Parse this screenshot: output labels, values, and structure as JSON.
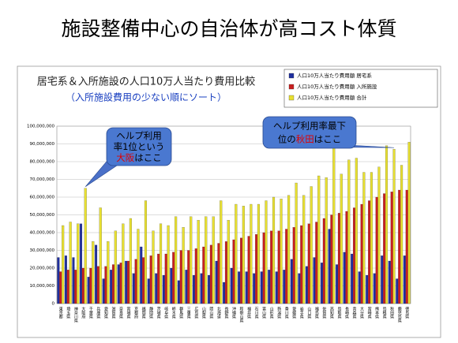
{
  "title": "施設整備中心の自治体が高コスト体質",
  "chart_data": {
    "type": "bar",
    "title": "居宅系＆入所施設の人口10万人当たり費用比較",
    "subtitle": "（入所施設費用の少ない順にソート）",
    "categories": [
      "東京都",
      "埼玉県",
      "神奈川県",
      "大阪府",
      "千葉県",
      "兵庫県",
      "愛知県",
      "滋賀県",
      "奈良県",
      "宮城県",
      "京都府",
      "福岡県",
      "静岡県",
      "茨城県",
      "岐阜県",
      "栃木県",
      "群馬県",
      "三重県",
      "広島県",
      "山梨県",
      "岡山県",
      "北海道",
      "長野県",
      "沖縄県",
      "和歌山県",
      "福井県",
      "石川県",
      "富山県",
      "山形県",
      "新潟県",
      "香川県",
      "愛媛県",
      "岩手県",
      "山口県",
      "福島県",
      "佐賀県",
      "高知県",
      "鳥取県",
      "長崎県",
      "青森県",
      "大分県",
      "宮崎県",
      "熊本県",
      "島根県",
      "秋田県",
      "鹿児島県",
      "徳島県"
    ],
    "series": [
      {
        "name": "人口10万人当たり費用額 居宅系",
        "color": "#1f2f9f",
        "values": [
          26000000,
          27000000,
          26000000,
          45000000,
          15000000,
          33000000,
          14000000,
          19000000,
          22000000,
          24000000,
          17000000,
          32000000,
          14000000,
          17000000,
          16000000,
          20000000,
          13000000,
          19000000,
          16000000,
          17000000,
          16000000,
          24000000,
          12000000,
          20000000,
          18000000,
          18000000,
          17000000,
          18000000,
          19000000,
          18000000,
          19000000,
          25000000,
          17000000,
          21000000,
          26000000,
          23000000,
          42000000,
          22000000,
          29000000,
          28000000,
          18000000,
          16000000,
          17000000,
          27000000,
          24000000,
          14000000,
          27000000
        ]
      },
      {
        "name": "人口10万人当たり費用額 入所施設",
        "color": "#c82020",
        "values": [
          18000000,
          19000000,
          19000000,
          20000000,
          20000000,
          21000000,
          21000000,
          22000000,
          23000000,
          24000000,
          25000000,
          26000000,
          27000000,
          28000000,
          28000000,
          29000000,
          30000000,
          30000000,
          31000000,
          32000000,
          33000000,
          34000000,
          35000000,
          36000000,
          37000000,
          38000000,
          39000000,
          40000000,
          41000000,
          41000000,
          42000000,
          43000000,
          44000000,
          45000000,
          46000000,
          48000000,
          50000000,
          51000000,
          52000000,
          54000000,
          56000000,
          58000000,
          60000000,
          62000000,
          63000000,
          64000000,
          64000000
        ]
      },
      {
        "name": "人口10万人当たり費用額 合計",
        "color": "#e8e030",
        "values": [
          44000000,
          46000000,
          45000000,
          65000000,
          35000000,
          54000000,
          35000000,
          41000000,
          45000000,
          48000000,
          42000000,
          58000000,
          41000000,
          45000000,
          44000000,
          49000000,
          43000000,
          49000000,
          47000000,
          49000000,
          49000000,
          58000000,
          47000000,
          56000000,
          55000000,
          56000000,
          56000000,
          58000000,
          60000000,
          59000000,
          61000000,
          68000000,
          61000000,
          66000000,
          72000000,
          71000000,
          92000000,
          73000000,
          81000000,
          82000000,
          74000000,
          74000000,
          77000000,
          89000000,
          87000000,
          78000000,
          91000000
        ]
      }
    ],
    "ylim": [
      0,
      100000000
    ],
    "yticks": [
      0,
      {
        "value": 10000000,
        "label": "10,000,000"
      },
      {
        "value": 20000000,
        "label": "20,000,000"
      },
      {
        "value": 30000000,
        "label": "30,000,000"
      },
      {
        "value": 40000000,
        "label": "40,000,000"
      },
      {
        "value": 50000000,
        "label": "50,000,000"
      },
      {
        "value": 60000000,
        "label": "60,000,000"
      },
      {
        "value": 70000000,
        "label": "70,000,000"
      },
      {
        "value": 80000000,
        "label": "80,000,000"
      },
      {
        "value": 90000000,
        "label": "90,000,000"
      },
      {
        "value": 100000000,
        "label": "100,000,000"
      }
    ],
    "grid": true,
    "legend": "top-right",
    "annotations": [
      {
        "lines": [
          [
            {
              "text": "ヘルプ利用",
              "color": "#000000"
            }
          ],
          [
            {
              "text": "率1位という",
              "color": "#000000"
            }
          ],
          [
            {
              "text": "大阪",
              "color": "#e00000"
            },
            {
              "text": "はここ",
              "color": "#000000"
            }
          ]
        ],
        "target": "大阪府"
      },
      {
        "lines": [
          [
            {
              "text": "ヘルプ利用率最下",
              "color": "#000000"
            }
          ],
          [
            {
              "text": "位の",
              "color": "#000000"
            },
            {
              "text": "秋田",
              "color": "#e00000"
            },
            {
              "text": "はここ",
              "color": "#000000"
            }
          ]
        ],
        "target": "秋田県"
      }
    ]
  }
}
